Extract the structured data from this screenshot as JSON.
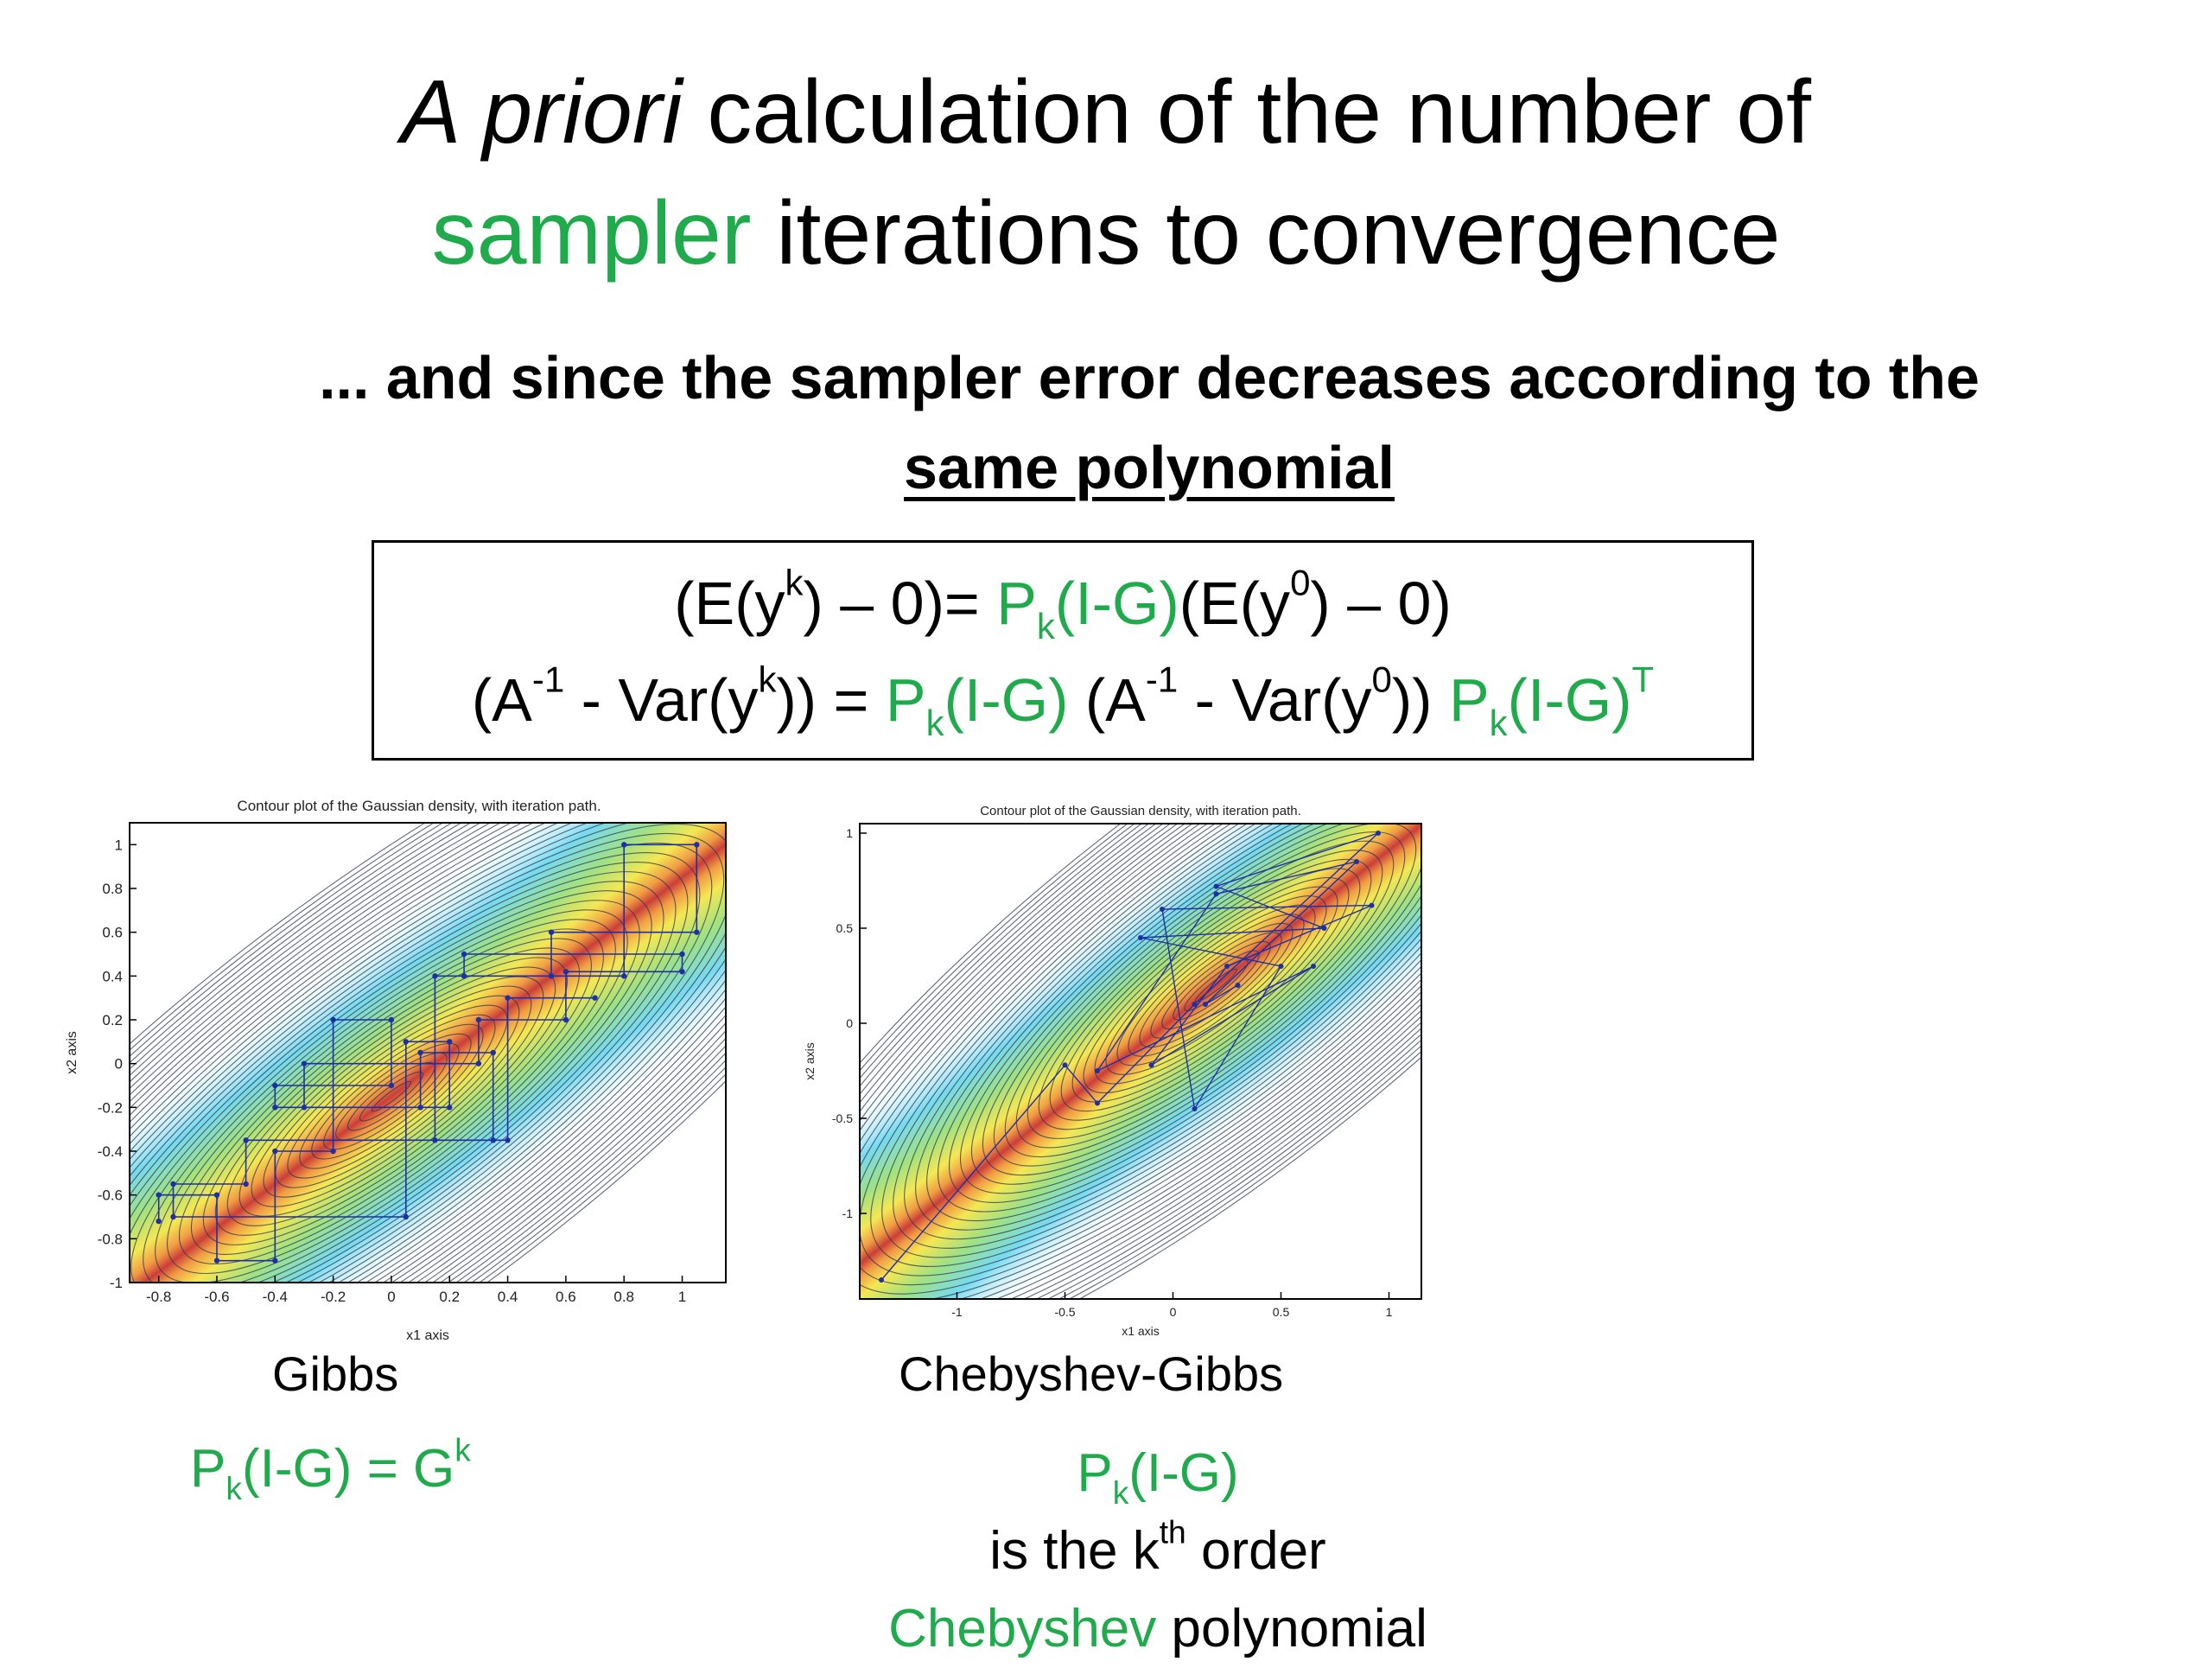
{
  "title": {
    "line1_italic": "A priori",
    "line1_rest": " calculation of the number of",
    "line2_green": "sampler",
    "line2_rest": " iterations to convergence"
  },
  "subtitle": {
    "line1": "... and since the sampler error decreases according to the",
    "line2_underlined": "same polynomial"
  },
  "equations": {
    "eq1": {
      "p1": "(E(y",
      "s1": "k",
      "p2": ") – 0)= ",
      "g1": "P",
      "g1sub": "k",
      "g1b": "(I-G)",
      "p3": "(E(y",
      "s2": "0",
      "p4": ") – 0)"
    },
    "eq2": {
      "p1": "(A",
      "s1": "-1",
      "p2": " - Var(y",
      "s2": "k",
      "p3": ")) = ",
      "g1": "P",
      "g1sub": "k",
      "g1b": "(I-G)",
      "p4": " (A",
      "s3": "-1",
      "p5": " - Var(y",
      "s4": "0",
      "p6": ")) ",
      "g2": "P",
      "g2sub": "k",
      "g2b": "(I-G)",
      "g2sup": "T"
    }
  },
  "plots": {
    "gibbs": {
      "title": "Contour plot of the Gaussian density, with iteration path.",
      "xlabel": "x1 axis",
      "ylabel": "x2 axis",
      "xticks": [
        "-0.8",
        "-0.6",
        "-0.4",
        "-0.2",
        "0",
        "0.2",
        "0.4",
        "0.6",
        "0.8",
        "1"
      ],
      "yticks": [
        "1",
        "0.8",
        "0.6",
        "0.4",
        "0.2",
        "0",
        "-0.2",
        "-0.4",
        "-0.6",
        "-0.8",
        "-1"
      ]
    },
    "cheb": {
      "title": "Contour plot of the Gaussian density, with iteration path.",
      "xlabel": "x1 axis",
      "ylabel": "x2 axis",
      "xticks": [
        "-1",
        "-0.5",
        "0",
        "0.5",
        "1"
      ],
      "yticks": [
        "1",
        "0.5",
        "0",
        "-0.5",
        "-1"
      ]
    }
  },
  "captions": {
    "gibbs": "Gibbs",
    "cheb": "Chebyshev-Gibbs"
  },
  "poly_gibbs": {
    "a": "P",
    "asub": "k",
    "b": "(I-G) = G",
    "bsup": "k"
  },
  "poly_cheb": {
    "line1_a": "P",
    "line1_sub": "k",
    "line1_b": "(I-G)",
    "line2_a": "is the k",
    "line2_sup": "th",
    "line2_b": " order",
    "line3_green": "Chebyshev",
    "line3_rest": " polynomial"
  },
  "colors": {
    "green": "#1faa4c",
    "path": "#1f2fa8"
  }
}
